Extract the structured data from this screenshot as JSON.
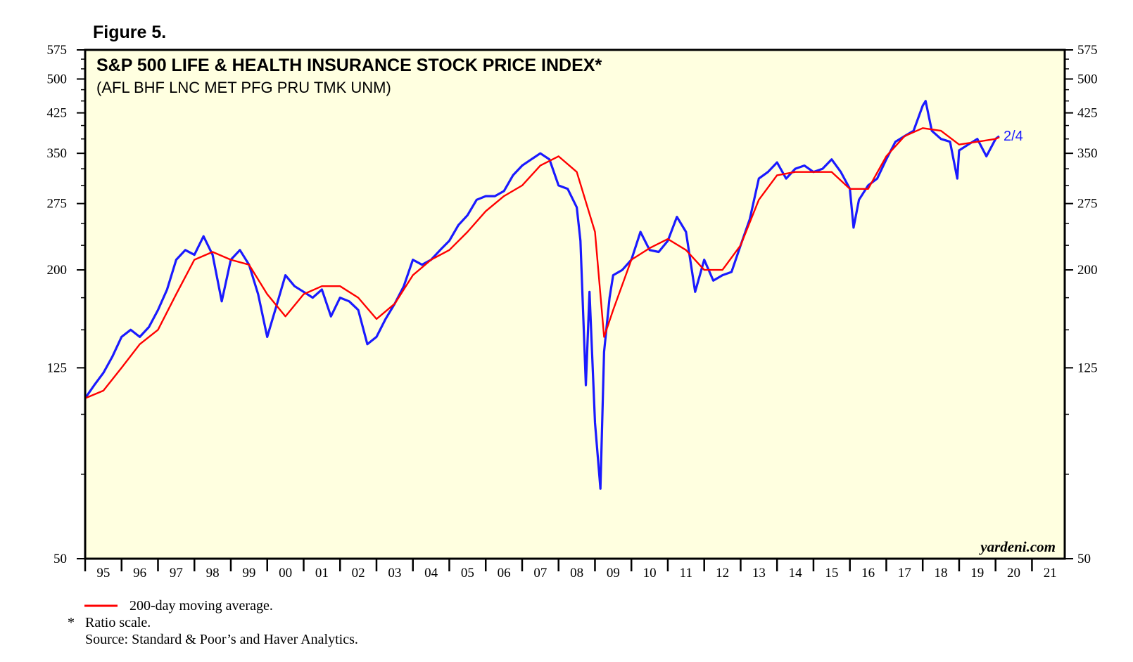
{
  "figure_label": "Figure 5.",
  "chart_data": {
    "type": "line",
    "title": "S&P 500 LIFE & HEALTH INSURANCE STOCK PRICE INDEX*",
    "subtitle": "(AFL BHF LNC MET PFG PRU TMK UNM)",
    "y_scale": "log",
    "ylim": [
      50,
      575
    ],
    "y_ticks": [
      50,
      125,
      200,
      275,
      350,
      425,
      500,
      575
    ],
    "y_tick_labels": [
      "50",
      "125",
      "200",
      "275",
      "350",
      "425",
      "500",
      "575"
    ],
    "x_range": [
      1995.0,
      2021.9
    ],
    "x_tick_labels": [
      "95",
      "96",
      "97",
      "98",
      "99",
      "00",
      "01",
      "02",
      "03",
      "04",
      "05",
      "06",
      "07",
      "08",
      "09",
      "10",
      "11",
      "12",
      "13",
      "14",
      "15",
      "16",
      "17",
      "18",
      "19",
      "20",
      "21"
    ],
    "end_label": "2/4",
    "watermark": "yardeni.com",
    "grid": false,
    "colors": {
      "plot_background": "#ffffe0",
      "index_line": "#1a1aff",
      "moving_average": "#ff0000",
      "frame": "#000000"
    },
    "series": [
      {
        "key": "index",
        "x": [
          1995.0,
          1995.25,
          1995.5,
          1995.75,
          1996.0,
          1996.25,
          1996.5,
          1996.75,
          1997.0,
          1997.25,
          1997.5,
          1997.75,
          1998.0,
          1998.25,
          1998.5,
          1998.75,
          1999.0,
          1999.25,
          1999.5,
          1999.75,
          2000.0,
          2000.25,
          2000.5,
          2000.75,
          2001.0,
          2001.25,
          2001.5,
          2001.75,
          2002.0,
          2002.25,
          2002.5,
          2002.75,
          2003.0,
          2003.25,
          2003.5,
          2003.75,
          2004.0,
          2004.25,
          2004.5,
          2004.75,
          2005.0,
          2005.25,
          2005.5,
          2005.75,
          2006.0,
          2006.25,
          2006.5,
          2006.75,
          2007.0,
          2007.25,
          2007.5,
          2007.75,
          2008.0,
          2008.25,
          2008.5,
          2008.6,
          2008.75,
          2008.85,
          2009.0,
          2009.15,
          2009.25,
          2009.4,
          2009.5,
          2009.75,
          2010.0,
          2010.25,
          2010.5,
          2010.75,
          2011.0,
          2011.25,
          2011.5,
          2011.75,
          2012.0,
          2012.25,
          2012.5,
          2012.75,
          2013.0,
          2013.25,
          2013.5,
          2013.75,
          2014.0,
          2014.25,
          2014.5,
          2014.75,
          2015.0,
          2015.25,
          2015.5,
          2015.75,
          2016.0,
          2016.1,
          2016.25,
          2016.5,
          2016.75,
          2017.0,
          2017.25,
          2017.5,
          2017.75,
          2018.0,
          2018.08,
          2018.25,
          2018.5,
          2018.75,
          2018.95,
          2019.0,
          2019.25,
          2019.5,
          2019.75,
          2020.0,
          2020.1
        ],
        "values": [
          108,
          115,
          122,
          132,
          145,
          150,
          145,
          152,
          165,
          182,
          210,
          220,
          215,
          235,
          215,
          172,
          210,
          220,
          205,
          178,
          145,
          168,
          195,
          185,
          180,
          175,
          182,
          160,
          175,
          172,
          165,
          140,
          145,
          158,
          170,
          185,
          210,
          205,
          210,
          220,
          230,
          248,
          260,
          280,
          285,
          285,
          292,
          315,
          330,
          340,
          350,
          340,
          300,
          295,
          270,
          230,
          115,
          180,
          96,
          70,
          135,
          175,
          195,
          200,
          210,
          240,
          220,
          218,
          230,
          258,
          240,
          180,
          210,
          190,
          195,
          198,
          225,
          255,
          310,
          320,
          335,
          310,
          325,
          330,
          320,
          325,
          340,
          320,
          295,
          245,
          280,
          300,
          310,
          340,
          370,
          380,
          390,
          440,
          450,
          390,
          375,
          370,
          310,
          355,
          365,
          375,
          345,
          375,
          380
        ]
      },
      {
        "key": "moving_average",
        "name": "200-day moving average.",
        "x": [
          1995.0,
          1995.5,
          1996.0,
          1996.5,
          1997.0,
          1997.5,
          1998.0,
          1998.5,
          1999.0,
          1999.5,
          2000.0,
          2000.5,
          2001.0,
          2001.5,
          2002.0,
          2002.5,
          2003.0,
          2003.5,
          2004.0,
          2004.5,
          2005.0,
          2005.5,
          2006.0,
          2006.5,
          2007.0,
          2007.5,
          2008.0,
          2008.5,
          2009.0,
          2009.25,
          2009.5,
          2010.0,
          2010.5,
          2011.0,
          2011.5,
          2012.0,
          2012.5,
          2013.0,
          2013.5,
          2014.0,
          2014.5,
          2015.0,
          2015.5,
          2016.0,
          2016.5,
          2017.0,
          2017.5,
          2018.0,
          2018.5,
          2019.0,
          2019.5,
          2020.0,
          2020.1
        ],
        "values": [
          108,
          112,
          125,
          140,
          150,
          178,
          210,
          218,
          210,
          205,
          178,
          160,
          178,
          185,
          185,
          175,
          158,
          170,
          195,
          210,
          220,
          240,
          265,
          285,
          300,
          330,
          345,
          320,
          240,
          145,
          165,
          210,
          222,
          232,
          220,
          200,
          200,
          225,
          280,
          315,
          320,
          320,
          320,
          295,
          295,
          345,
          380,
          395,
          390,
          365,
          370,
          375,
          378
        ]
      }
    ]
  },
  "notes": {
    "legend_ma": "200-day moving average.",
    "ratio_star": "*",
    "ratio_text": "Ratio scale.",
    "source": "Source: Standard & Poor’s and Haver Analytics."
  }
}
